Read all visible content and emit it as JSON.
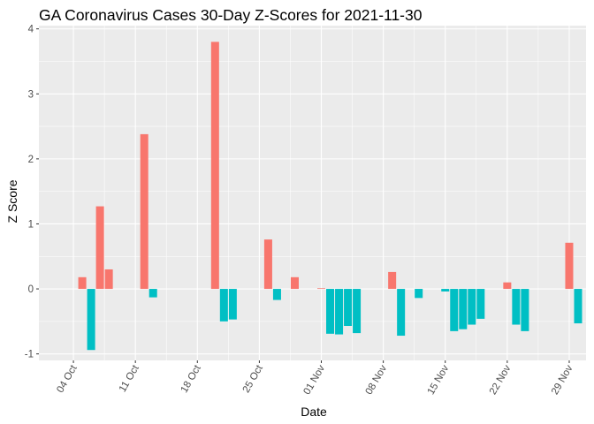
{
  "chart_data": {
    "type": "bar",
    "title": "GA Coronavirus Cases 30-Day Z-Scores for 2021-11-30",
    "xlabel": "Date",
    "ylabel": "Z Score",
    "x_axis_type": "date",
    "x_range": [
      "2021-10-01",
      "2021-11-30"
    ],
    "ylim": [
      -1.1,
      4.05
    ],
    "y_ticks": [
      -1,
      0,
      1,
      2,
      3,
      4
    ],
    "x_tick_dates": [
      "2021-10-04",
      "2021-10-11",
      "2021-10-18",
      "2021-10-25",
      "2021-11-01",
      "2021-11-08",
      "2021-11-15",
      "2021-11-22",
      "2021-11-29"
    ],
    "x_tick_labels": [
      "04 Oct",
      "11 Oct",
      "18 Oct",
      "25 Oct",
      "01 Nov",
      "08 Nov",
      "15 Nov",
      "22 Nov",
      "29 Nov"
    ],
    "grid": true,
    "legend": "none",
    "colors": {
      "positive": "#F8766D",
      "negative": "#00BFC4",
      "panel": "#EBEBEB",
      "grid": "#FFFFFF"
    },
    "points": [
      {
        "date": "2021-10-02",
        "value": 0.0
      },
      {
        "date": "2021-10-03",
        "value": 0.0
      },
      {
        "date": "2021-10-05",
        "value": 0.18
      },
      {
        "date": "2021-10-06",
        "value": -0.94
      },
      {
        "date": "2021-10-07",
        "value": 1.27
      },
      {
        "date": "2021-10-08",
        "value": 0.3
      },
      {
        "date": "2021-10-12",
        "value": 2.38
      },
      {
        "date": "2021-10-13",
        "value": -0.13
      },
      {
        "date": "2021-10-20",
        "value": 3.8
      },
      {
        "date": "2021-10-21",
        "value": -0.5
      },
      {
        "date": "2021-10-22",
        "value": -0.47
      },
      {
        "date": "2021-10-26",
        "value": 0.76
      },
      {
        "date": "2021-10-27",
        "value": -0.17
      },
      {
        "date": "2021-10-29",
        "value": 0.18
      },
      {
        "date": "2021-11-01",
        "value": 0.01
      },
      {
        "date": "2021-11-02",
        "value": -0.69
      },
      {
        "date": "2021-11-03",
        "value": -0.7
      },
      {
        "date": "2021-11-04",
        "value": -0.57
      },
      {
        "date": "2021-11-05",
        "value": -0.68
      },
      {
        "date": "2021-11-09",
        "value": 0.26
      },
      {
        "date": "2021-11-10",
        "value": -0.72
      },
      {
        "date": "2021-11-12",
        "value": -0.14
      },
      {
        "date": "2021-11-15",
        "value": -0.04
      },
      {
        "date": "2021-11-16",
        "value": -0.65
      },
      {
        "date": "2021-11-17",
        "value": -0.62
      },
      {
        "date": "2021-11-18",
        "value": -0.55
      },
      {
        "date": "2021-11-19",
        "value": -0.46
      },
      {
        "date": "2021-11-22",
        "value": 0.1
      },
      {
        "date": "2021-11-23",
        "value": -0.55
      },
      {
        "date": "2021-11-24",
        "value": -0.65
      },
      {
        "date": "2021-11-29",
        "value": 0.71
      },
      {
        "date": "2021-11-30",
        "value": -0.53
      }
    ]
  }
}
